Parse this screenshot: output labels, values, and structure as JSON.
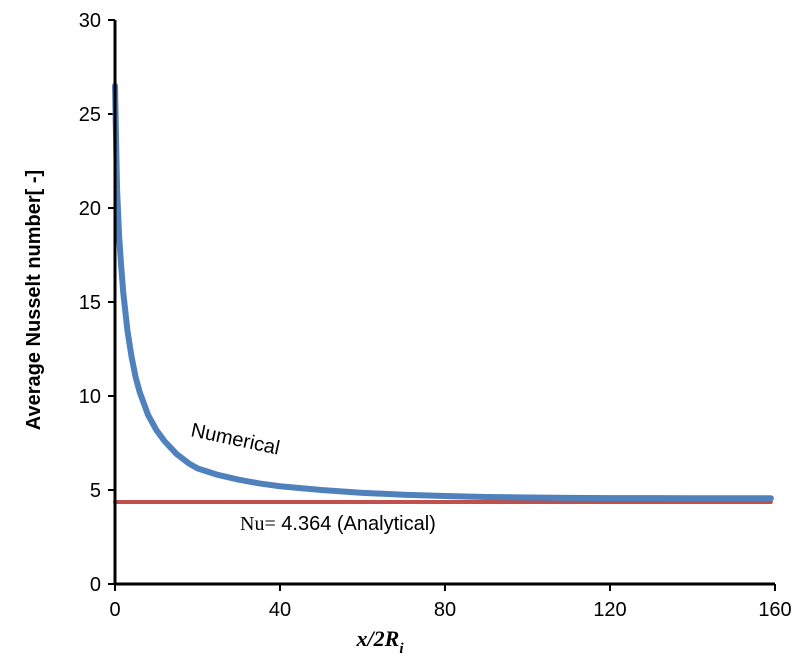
{
  "chart_data": {
    "type": "line",
    "ylabel": "Average Nusselt number[ -]",
    "xlabel": {
      "prefix": "x/2R",
      "subscript": "i"
    },
    "xlim": [
      0,
      160
    ],
    "ylim": [
      0,
      30
    ],
    "xticks": [
      "0",
      "40",
      "80",
      "120",
      "160"
    ],
    "yticks": [
      "0",
      "5",
      "10",
      "15",
      "20",
      "25",
      "30"
    ],
    "grid": false,
    "series": [
      {
        "name": "Numerical",
        "color": "#4f81bd",
        "x": [
          0,
          0.5,
          1,
          1.5,
          2,
          3,
          4,
          5,
          6,
          8,
          10,
          12,
          15,
          18,
          20,
          25,
          30,
          35,
          40,
          50,
          60,
          70,
          80,
          90,
          100,
          110,
          120,
          130,
          140,
          150,
          159
        ],
        "y": [
          26.5,
          21.0,
          18.5,
          16.9,
          15.5,
          13.5,
          12.1,
          11.0,
          10.2,
          9.0,
          8.2,
          7.6,
          6.9,
          6.4,
          6.15,
          5.8,
          5.55,
          5.35,
          5.2,
          5.0,
          4.85,
          4.75,
          4.68,
          4.63,
          4.6,
          4.58,
          4.57,
          4.57,
          4.56,
          4.56,
          4.56
        ]
      },
      {
        "name": "Nu= 4.364 (Analytical)",
        "color": "#c0504d",
        "x": [
          0,
          159
        ],
        "y": [
          4.364,
          4.364
        ]
      }
    ],
    "annotations": {
      "numerical": "Numerical",
      "analytical_prefix": "Nu=",
      "analytical_suffix": " 4.364 (Analytical)"
    }
  }
}
